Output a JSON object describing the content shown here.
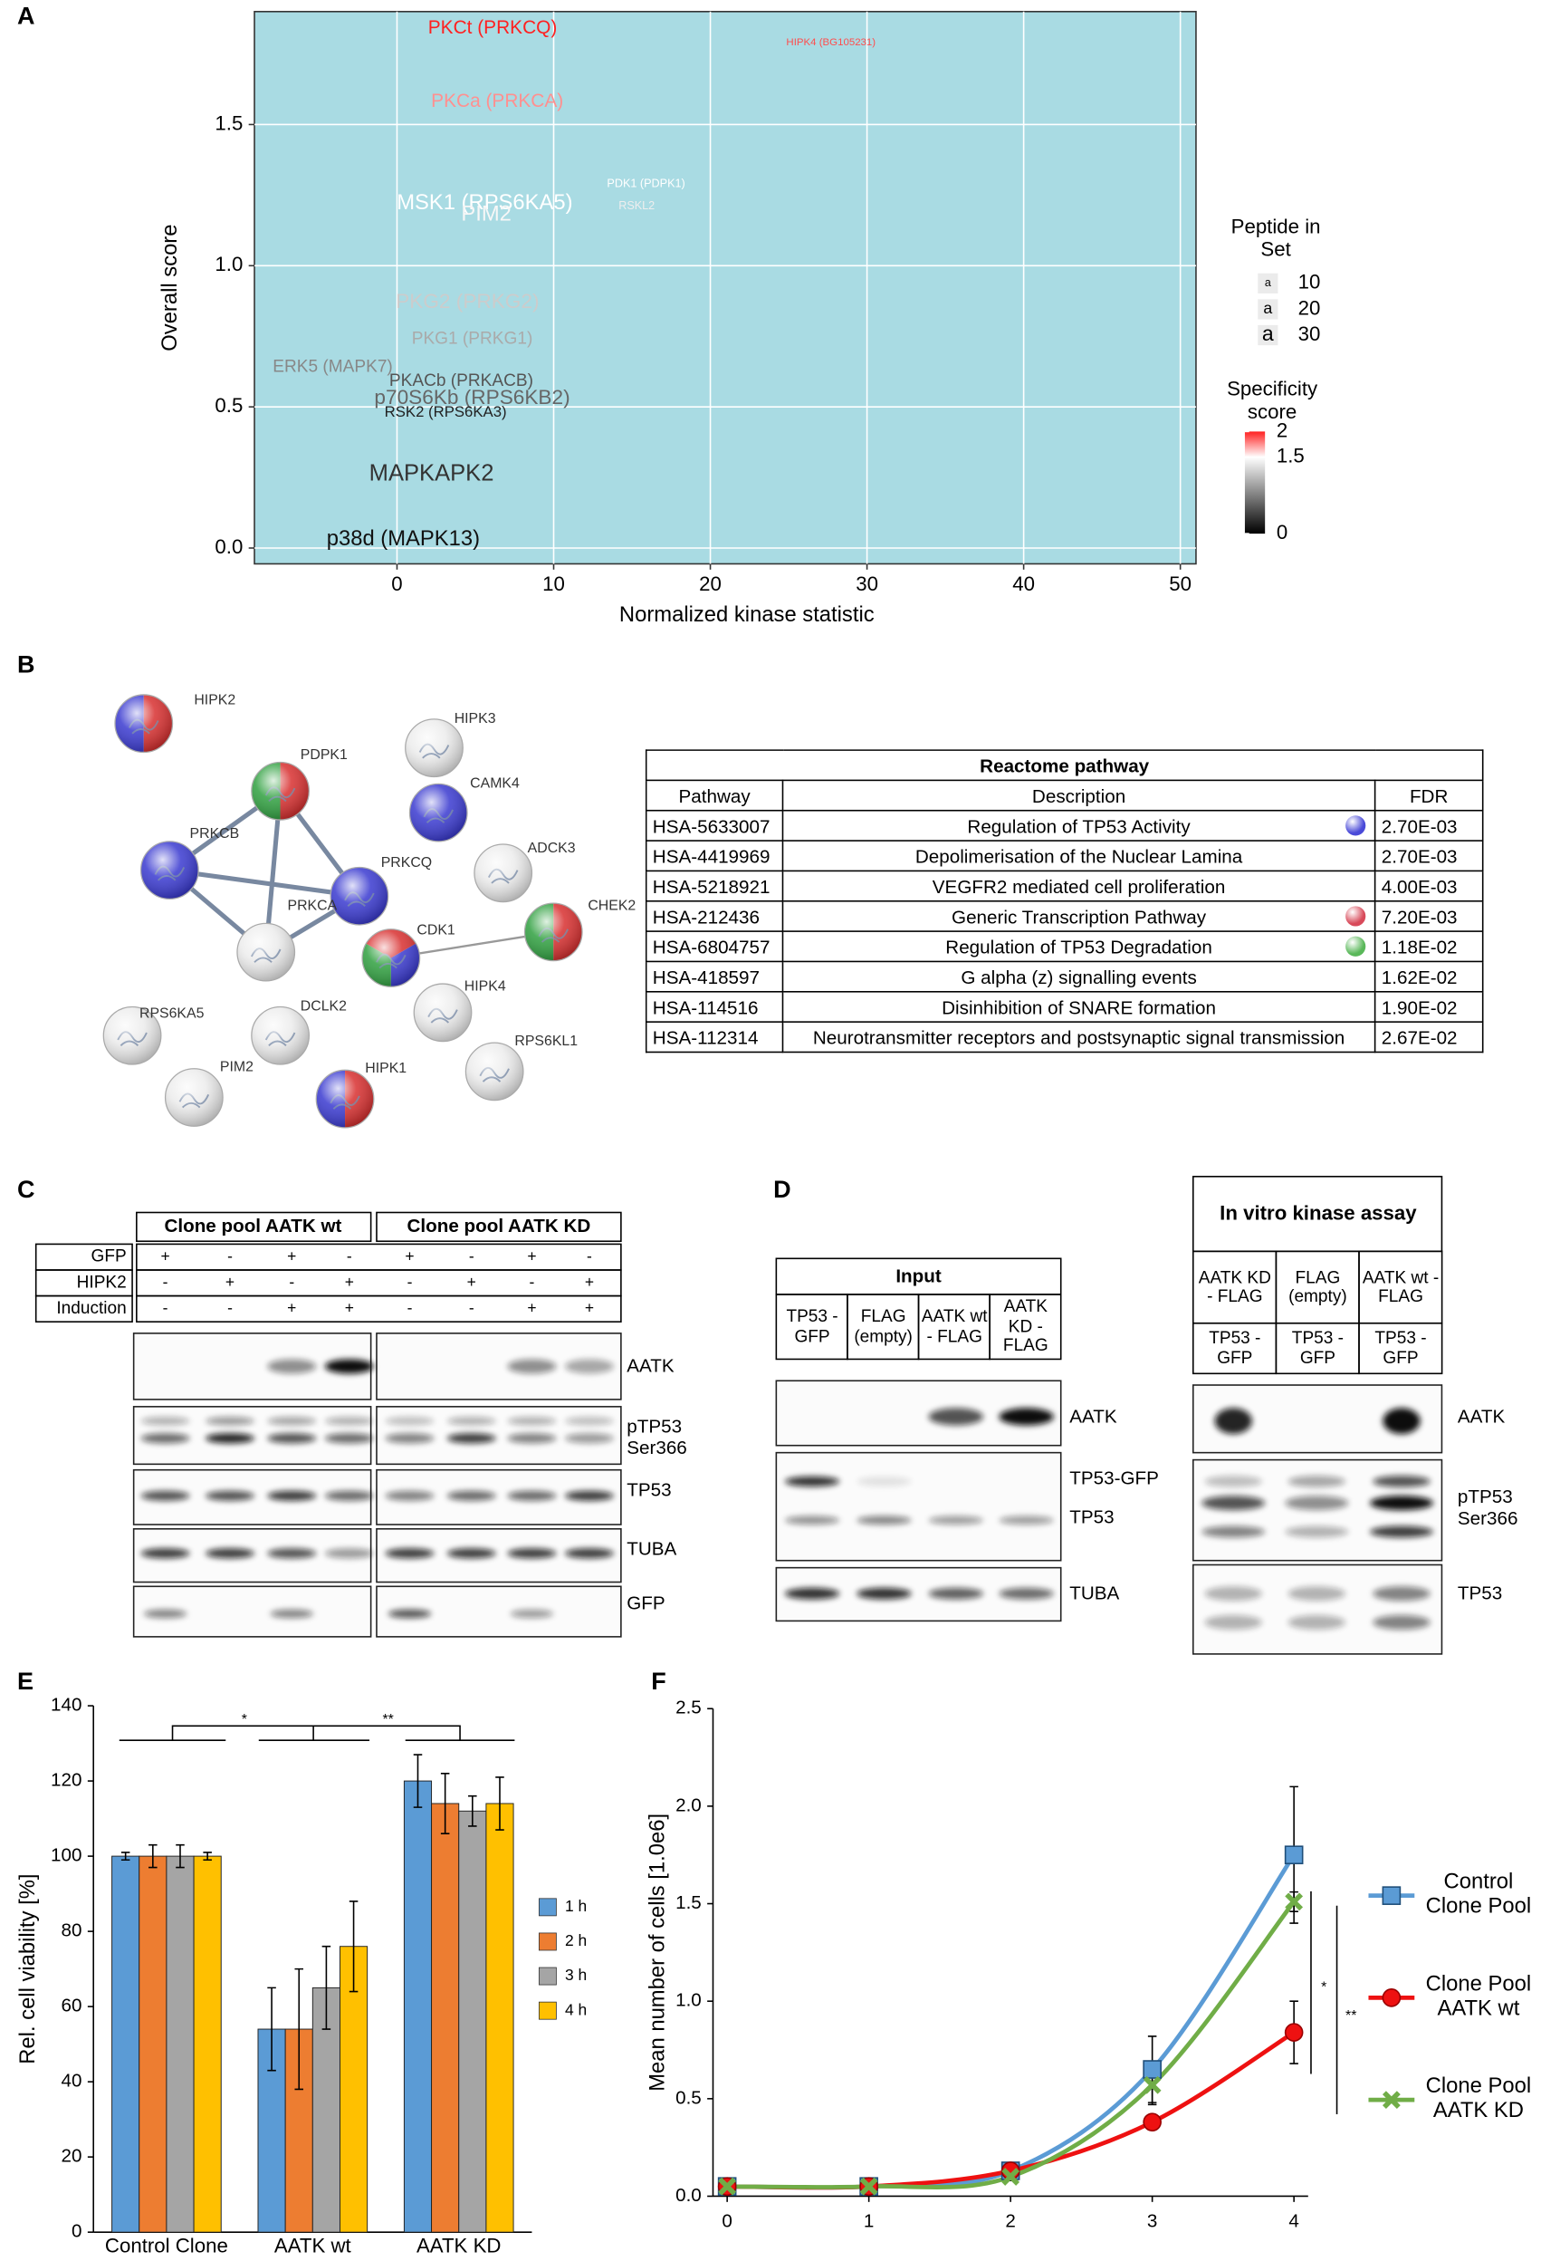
{
  "panels": [
    "A",
    "B",
    "C",
    "D",
    "E",
    "F"
  ],
  "chart_data": [
    {
      "type": "scatter",
      "x_label": "Normalized kinase statistic",
      "y_label": "Overall score",
      "xlim": [
        -9.1,
        51
      ],
      "ylim": [
        -0.056,
        1.9
      ],
      "xticks": [
        0,
        10,
        20,
        30,
        40,
        50
      ],
      "yticks": [
        {
          "value": 0,
          "label": "0.0"
        },
        0.5,
        {
          "value": 1,
          "label": "1.0"
        },
        1.5
      ],
      "grid": true,
      "background": "#a9dbe3",
      "labels": [
        "PKCt (PRKCQ)",
        "HIPK4 (BG105231)",
        "PKCa (PRKCA)",
        "MSK1 (RPS6KA5)",
        "PIM2",
        "PDK1 (PDPK1)",
        "RSKL2",
        "PKG2 (PRKG2)",
        "PKG1 (PRKG1)",
        "ERK5 (MAPK7)",
        "PKACb (PRKACB)",
        "p70S6Kb (RPS6KB2)",
        "RSK2 (RPS6KA3)",
        "MAPKAPK2",
        "p38d (MAPK13)"
      ],
      "x": [
        6.1,
        27.7,
        6.4,
        5.6,
        5.7,
        15.9,
        15.3,
        4.5,
        4.8,
        -4.1,
        4.1,
        4.8,
        3.1,
        2.2,
        0.4
      ],
      "y": [
        1.84,
        1.79,
        1.58,
        1.22,
        1.18,
        1.29,
        1.21,
        0.87,
        0.74,
        0.64,
        0.59,
        0.53,
        0.48,
        0.26,
        0.03
      ],
      "sizes": [
        22,
        6,
        22,
        27,
        27,
        8,
        8,
        25,
        19,
        19,
        19,
        25,
        15,
        30,
        27
      ],
      "specificity": [
        2,
        1.9,
        1.75,
        1.5,
        1.45,
        1.5,
        1.4,
        1.2,
        1.0,
        0.8,
        0.5,
        0.6,
        0.2,
        0.3,
        0.1
      ],
      "size_legend": {
        "title": "Peptide in Set",
        "symbol": "a",
        "values": [
          10,
          20,
          30
        ]
      },
      "color_legend": {
        "title": "Specificity score",
        "ticks": [
          0,
          1.5,
          2
        ],
        "colors": [
          "#000000",
          "#ffffff",
          "#ff2020"
        ]
      }
    },
    {
      "type": "bar",
      "y_label": "Rel. cell viability [%]",
      "categories": [
        "Control Clone pool",
        "AATK wt",
        "AATK KD"
      ],
      "ylim": [
        0,
        140
      ],
      "yticks": [
        0,
        20,
        40,
        60,
        80,
        100,
        120,
        140
      ],
      "series": [
        {
          "name": "1 h",
          "color": "#5b9bd5",
          "values": [
            100,
            54,
            120
          ],
          "errors": [
            1,
            11,
            7
          ]
        },
        {
          "name": "2 h",
          "color": "#ed7d31",
          "values": [
            100,
            54,
            114
          ],
          "errors": [
            3,
            16,
            8
          ]
        },
        {
          "name": "3 h",
          "color": "#a5a5a5",
          "values": [
            100,
            65,
            112
          ],
          "errors": [
            3,
            11,
            4
          ]
        },
        {
          "name": "4 h",
          "color": "#ffc000",
          "values": [
            100,
            76,
            114
          ],
          "errors": [
            1,
            12,
            7
          ]
        }
      ],
      "annotations": [
        "*",
        "**"
      ]
    },
    {
      "type": "line",
      "y_label": "Mean number of cells [1.0e6]",
      "x": [
        0,
        1,
        2,
        3,
        4
      ],
      "xlim": [
        -0.1,
        4.1
      ],
      "xticks": [
        0,
        1,
        2,
        3,
        4
      ],
      "ylim": [
        0,
        2.5
      ],
      "yticks": [
        {
          "value": 0,
          "label": "0.0"
        },
        0.5,
        {
          "value": 1,
          "label": "1.0"
        },
        1.5,
        {
          "value": 2,
          "label": "2.0"
        },
        2.5
      ],
      "series": [
        {
          "name": "Control Clone Pool",
          "color": "#5b9bd5",
          "marker": "square",
          "values": [
            0.05,
            0.05,
            0.13,
            0.65,
            1.75
          ],
          "errors": [
            0.03,
            0.02,
            0.03,
            0.17,
            0.35
          ]
        },
        {
          "name": "Clone Pool AATK wt",
          "color": "#ee1111",
          "marker": "circle",
          "values": [
            0.05,
            0.05,
            0.13,
            0.38,
            0.84
          ],
          "errors": [
            0.02,
            0.02,
            0.03,
            0.02,
            0.16
          ]
        },
        {
          "name": "Clone Pool AATK KD",
          "color": "#70ad47",
          "marker": "x",
          "values": [
            0.05,
            0.05,
            0.1,
            0.57,
            1.51
          ],
          "errors": [
            0.02,
            0.02,
            0.02,
            0.1,
            0.05
          ]
        }
      ],
      "annotations": [
        "*",
        "**"
      ]
    }
  ],
  "network": {
    "nodes": [
      {
        "label": "HIPK2",
        "colors": [
          "#3a3ad0",
          "#d83030"
        ]
      },
      {
        "label": "PDPK1",
        "colors": [
          "#30a040",
          "#d83030"
        ]
      },
      {
        "label": "HIPK3",
        "colors": [
          "#ececec"
        ]
      },
      {
        "label": "CAMK4",
        "colors": [
          "#3a3ad0"
        ]
      },
      {
        "label": "PRKCB",
        "colors": [
          "#3a3ad0"
        ]
      },
      {
        "label": "ADCK3",
        "colors": [
          "#ececec"
        ]
      },
      {
        "label": "PRKCQ",
        "colors": [
          "#3a3ad0"
        ]
      },
      {
        "label": "CHEK2",
        "colors": [
          "#30a040",
          "#d83030"
        ]
      },
      {
        "label": "PRKCA",
        "colors": [
          "#ececec"
        ]
      },
      {
        "label": "CDK1",
        "colors": [
          "#30a040",
          "#d83030",
          "#3a3ad0"
        ]
      },
      {
        "label": "HIPK4",
        "colors": [
          "#ececec"
        ]
      },
      {
        "label": "RPS6KA5",
        "colors": [
          "#ececec"
        ]
      },
      {
        "label": "DCLK2",
        "colors": [
          "#ececec"
        ]
      },
      {
        "label": "RPS6KL1",
        "colors": [
          "#ececec"
        ]
      },
      {
        "label": "PIM2",
        "colors": [
          "#ececec"
        ]
      },
      {
        "label": "HIPK1",
        "colors": [
          "#3a3ad0",
          "#d83030"
        ]
      }
    ]
  },
  "reactome": {
    "title": "Reactome pathway",
    "columns": [
      "Pathway",
      "Description",
      "FDR"
    ],
    "rows": [
      {
        "pathway": "HSA-5633007",
        "description": "Regulation of TP53 Activity",
        "fdr": "2.70E-03",
        "marker": "#4a4ad8"
      },
      {
        "pathway": "HSA-4419969",
        "description": "Depolimerisation of the Nuclear Lamina",
        "fdr": "2.70E-03"
      },
      {
        "pathway": "HSA-5218921",
        "description": "VEGFR2 mediated cell proliferation",
        "fdr": "4.00E-03"
      },
      {
        "pathway": "HSA-212436",
        "description": "Generic Transcription Pathway",
        "fdr": "7.20E-03",
        "marker": "#d84a5a"
      },
      {
        "pathway": "HSA-6804757",
        "description": "Regulation of TP53 Degradation",
        "fdr": "1.18E-02",
        "marker": "#5ab85a"
      },
      {
        "pathway": "HSA-418597",
        "description": "G alpha (z) signalling events",
        "fdr": "1.62E-02"
      },
      {
        "pathway": "HSA-114516",
        "description": "Disinhibition of SNARE formation",
        "fdr": "1.90E-02"
      },
      {
        "pathway": "HSA-112314",
        "description": "Neurotransmitter receptors and postsynaptic signal transmission",
        "fdr": "2.67E-02"
      }
    ]
  },
  "blot_c": {
    "groups": [
      "Clone pool AATK wt",
      "Clone pool AATK KD"
    ],
    "conditions": [
      {
        "name": "GFP",
        "lanes": [
          "+",
          "-",
          "+",
          "-",
          "+",
          "-",
          "+",
          "-"
        ]
      },
      {
        "name": "HIPK2",
        "lanes": [
          "-",
          "+",
          "-",
          "+",
          "-",
          "+",
          "-",
          "+"
        ]
      },
      {
        "name": "Induction",
        "lanes": [
          "-",
          "-",
          "+",
          "+",
          "-",
          "-",
          "+",
          "+"
        ]
      }
    ],
    "bands": [
      "AATK",
      "pTP53 Ser366",
      "TP53",
      "TUBA",
      "GFP"
    ]
  },
  "blot_d": {
    "input": {
      "title": "Input",
      "lanes": [
        "TP53 - GFP",
        "FLAG (empty)",
        "AATK wt - FLAG",
        "AATK KD - FLAG"
      ],
      "bands": [
        "AATK",
        "TP53-GFP",
        "TP53",
        "TUBA"
      ]
    },
    "kinase": {
      "title": "In vitro kinase assay",
      "lanes": [
        "AATK KD - FLAG",
        "FLAG (empty)",
        "AATK wt - FLAG"
      ],
      "substrate": [
        "TP53 - GFP",
        "TP53 - GFP",
        "TP53 - GFP"
      ],
      "bands": [
        "AATK",
        "pTP53 Ser366",
        "TP53"
      ]
    }
  }
}
